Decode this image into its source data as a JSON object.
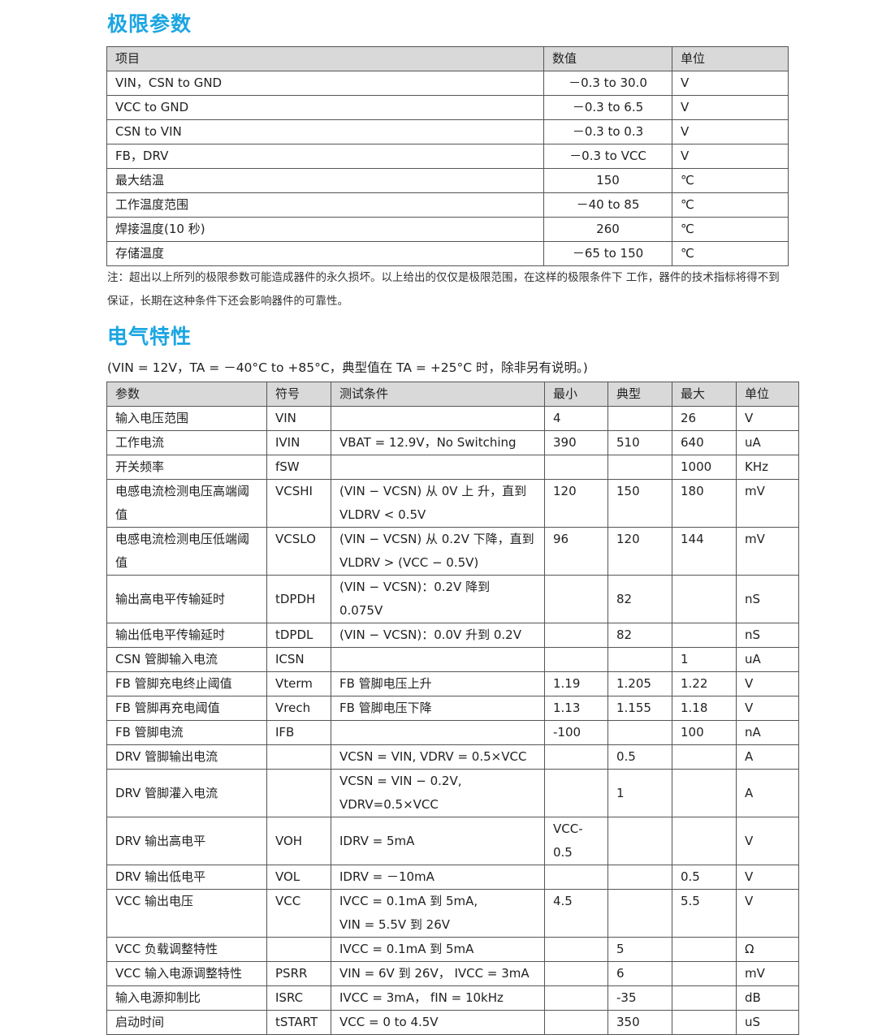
{
  "section1": {
    "title": "极限参数",
    "headers": [
      "项目",
      "数值",
      "单位"
    ],
    "rows": [
      [
        "VIN，CSN to GND",
        "－0.3 to 30.0",
        "V"
      ],
      [
        "VCC to GND",
        "－0.3 to 6.5",
        "V"
      ],
      [
        "CSN to VIN",
        "－0.3 to 0.3",
        "V"
      ],
      [
        "FB，DRV",
        "－0.3 to VCC",
        "V"
      ],
      [
        "最大结温",
        "150",
        "℃"
      ],
      [
        "工作温度范围",
        "－40 to 85",
        "℃"
      ],
      [
        "焊接温度(10 秒)",
        "260",
        "℃"
      ],
      [
        "存储温度",
        "－65 to 150",
        "℃"
      ]
    ],
    "note": "注：超出以上所列的极限参数可能造成器件的永久损坏。以上给出的仅仅是极限范围，在这样的极限条件下 工作，器件的技术指标将得不到保证，长期在这种条件下还会影响器件的可靠性。"
  },
  "section2": {
    "title": "电气特性",
    "conditions": "(VIN = 12V，TA = －40°C to +85°C，典型值在 TA = +25°C 时，除非另有说明。)",
    "headers": [
      "参数",
      "符号",
      "测试条件",
      "最小",
      "典型",
      "最大",
      "单位"
    ],
    "rows": [
      [
        "输入电压范围",
        "VIN",
        "",
        "4",
        "",
        "26",
        "V"
      ],
      [
        "工作电流",
        "IVIN",
        "VBAT = 12.9V，No Switching",
        "390",
        "510",
        "640",
        "uA"
      ],
      [
        "开关频率",
        "fSW",
        "",
        "",
        "",
        "1000",
        "KHz"
      ],
      [
        "电感电流检测电压高端阈值",
        "VCSHI",
        "(VIN − VCSN) 从 0V 上 升，直到\nVLDRV < 0.5V",
        "120",
        "150",
        "180",
        "mV"
      ],
      [
        "电感电流检测电压低端阈值",
        "VCSLO",
        "(VIN − VCSN) 从 0.2V 下降，直到\nVLDRV > (VCC − 0.5V)",
        "96",
        "120",
        "144",
        "mV"
      ],
      [
        "输出高电平传输延时",
        "tDPDH",
        "(VIN − VCSN)：0.2V 降到 0.075V",
        "",
        "82",
        "",
        "nS"
      ],
      [
        "输出低电平传输延时",
        "tDPDL",
        "(VIN − VCSN)：0.0V 升到 0.2V",
        "",
        "82",
        "",
        "nS"
      ],
      [
        "CSN 管脚输入电流",
        "ICSN",
        "",
        "",
        "",
        "1",
        "uA"
      ],
      [
        "FB 管脚充电终止阈值",
        "Vterm",
        "FB 管脚电压上升",
        "1.19",
        "1.205",
        "1.22",
        "V"
      ],
      [
        "FB 管脚再充电阈值",
        "Vrech",
        "FB 管脚电压下降",
        "1.13",
        "1.155",
        "1.18",
        "V"
      ],
      [
        "FB 管脚电流",
        "IFB",
        "",
        "-100",
        "",
        "100",
        "nA"
      ],
      [
        "DRV 管脚输出电流",
        "",
        "VCSN = VIN, VDRV = 0.5×VCC",
        "",
        "0.5",
        "",
        "A"
      ],
      [
        "DRV 管脚灌入电流",
        "",
        "VCSN = VIN − 0.2V, VDRV=0.5×VCC",
        "",
        "1",
        "",
        "A"
      ],
      [
        "DRV 输出高电平",
        "VOH",
        "IDRV = 5mA",
        "VCC-0.5",
        "",
        "",
        "V"
      ],
      [
        "DRV 输出低电平",
        "VOL",
        "IDRV = －10mA",
        "",
        "",
        "0.5",
        "V"
      ],
      [
        "VCC 输出电压",
        "VCC",
        "IVCC = 0.1mA 到 5mA,\nVIN = 5.5V 到 26V",
        "4.5",
        "",
        "5.5",
        "V"
      ],
      [
        "VCC 负载调整特性",
        "",
        "IVCC = 0.1mA 到 5mA",
        "",
        "5",
        "",
        "Ω"
      ],
      [
        "VCC 输入电源调整特性",
        "PSRR",
        "VIN = 6V 到 26V， IVCC = 3mA",
        "",
        "6",
        "",
        "mV"
      ],
      [
        "输入电源抑制比",
        "ISRC",
        "IVCC = 3mA， fIN = 10kHz",
        "",
        "-35",
        "",
        "dB"
      ],
      [
        "启动时间",
        "tSTART",
        "VCC = 0 to 4.5V",
        "",
        "350",
        "",
        "uS"
      ]
    ]
  }
}
